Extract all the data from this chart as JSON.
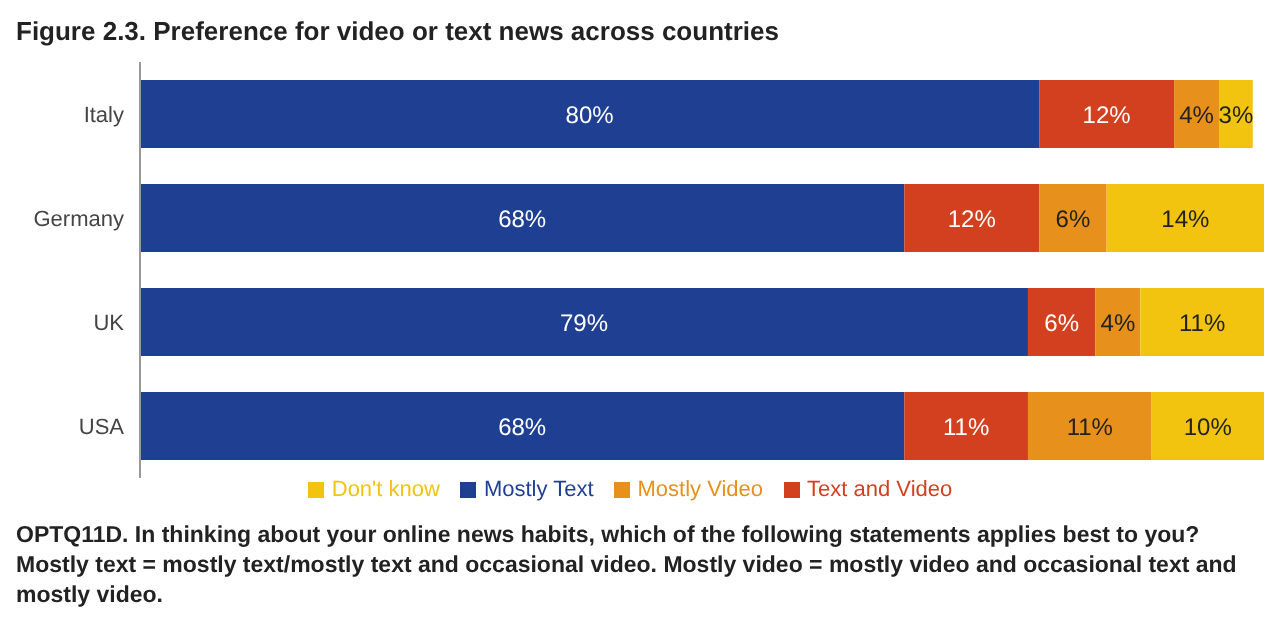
{
  "chart_data": {
    "type": "bar",
    "orientation": "horizontal",
    "stacked": true,
    "title": "Figure 2.3. Preference for video or text news across countries",
    "categories": [
      "Italy",
      "Germany",
      "UK",
      "USA"
    ],
    "series": [
      {
        "name": "Mostly Text",
        "color": "#1f3f93",
        "values": [
          80,
          68,
          79,
          68
        ],
        "value_labels": [
          "80%",
          "68%",
          "79%",
          "68%"
        ]
      },
      {
        "name": "Text and Video",
        "color": "#d2401f",
        "values": [
          12,
          12,
          6,
          11
        ],
        "value_labels": [
          "12%",
          "12%",
          "6%",
          "11%"
        ]
      },
      {
        "name": "Mostly Video",
        "color": "#e8901c",
        "values": [
          4,
          6,
          4,
          11
        ],
        "value_labels": [
          "4%",
          "6%",
          "4%",
          "11%"
        ]
      },
      {
        "name": "Don't know",
        "color": "#f2c40f",
        "values": [
          3,
          14,
          11,
          10
        ],
        "value_labels": [
          "3%",
          "14%",
          "11%",
          "10%"
        ]
      }
    ],
    "legend": "bottom",
    "annotations": [
      "OPTQ11D. In thinking about your online news habits, which of the following statements applies best to you? Mostly text = mostly text/mostly text and occasional video. Mostly video = mostly video and occasional text and mostly video."
    ]
  }
}
